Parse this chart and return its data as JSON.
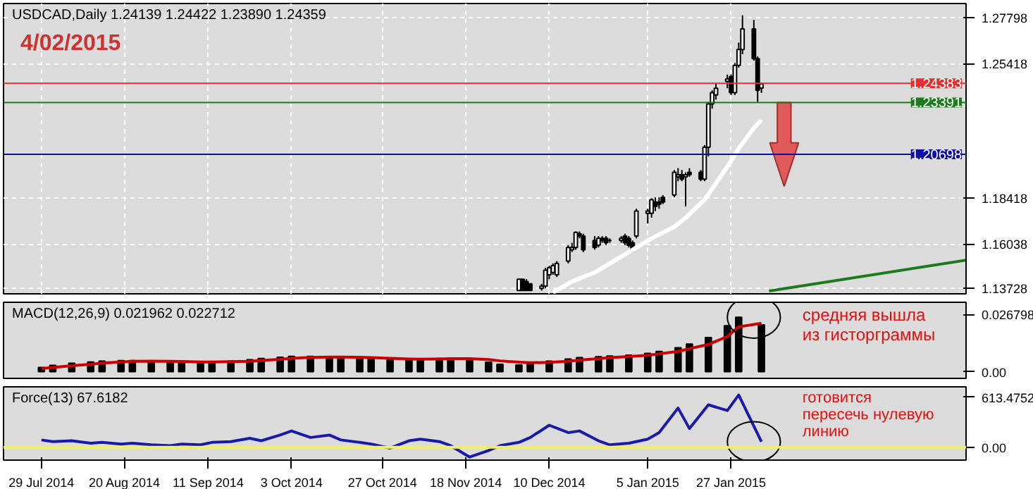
{
  "chart_data": [
    {
      "type": "candlestick",
      "title": "USDCAD,Daily 1.24139 1.24422 1.23890 1.24359",
      "annotations": [
        "4/02/2015"
      ],
      "x": [
        "2014-12-02",
        "2014-12-03",
        "2014-12-04",
        "2014-12-05",
        "2014-12-08",
        "2014-12-09",
        "2014-12-10",
        "2014-12-11",
        "2014-12-12",
        "2014-12-15",
        "2014-12-16",
        "2014-12-17",
        "2014-12-18",
        "2014-12-19",
        "2014-12-22",
        "2014-12-23",
        "2014-12-24",
        "2014-12-25",
        "2014-12-26",
        "2014-12-29",
        "2014-12-30",
        "2014-12-31",
        "2015-01-01",
        "2015-01-02",
        "2015-01-05",
        "2015-01-06",
        "2015-01-07",
        "2015-01-08",
        "2015-01-09",
        "2015-01-12",
        "2015-01-13",
        "2015-01-14",
        "2015-01-15",
        "2015-01-16",
        "2015-01-19",
        "2015-01-20",
        "2015-01-21",
        "2015-01-22",
        "2015-01-23",
        "2015-01-26",
        "2015-01-27",
        "2015-01-28",
        "2015-01-29",
        "2015-01-30",
        "2015-02-02",
        "2015-02-03",
        "2015-02-04"
      ],
      "ohlc": [
        [
          1.1362,
          1.1421,
          1.136,
          1.1421
        ],
        [
          1.1421,
          1.1421,
          1.136,
          1.1362
        ],
        [
          1.1409,
          1.1421,
          1.136,
          1.1362
        ],
        [
          1.1397,
          1.14,
          1.136,
          1.1362
        ],
        [
          1.1373,
          1.1397,
          1.1362,
          1.1385
        ],
        [
          1.1385,
          1.148,
          1.1373,
          1.1468
        ],
        [
          1.1444,
          1.1491,
          1.1421,
          1.148
        ],
        [
          1.1456,
          1.1503,
          1.1444,
          1.1491
        ],
        [
          1.1444,
          1.1515,
          1.1432,
          1.1503
        ],
        [
          1.1515,
          1.1598,
          1.1503,
          1.1586
        ],
        [
          1.1574,
          1.161,
          1.1562,
          1.1586
        ],
        [
          1.1586,
          1.1669,
          1.1574,
          1.1664
        ],
        [
          1.1657,
          1.1669,
          1.1633,
          1.1645
        ],
        [
          1.1645,
          1.1657,
          1.1562,
          1.1574
        ],
        [
          1.1622,
          1.1645,
          1.1574,
          1.1586
        ],
        [
          1.1598,
          1.1645,
          1.1586,
          1.1633
        ],
        [
          1.1633,
          1.1645,
          1.161,
          1.1622
        ],
        [
          1.1633,
          1.1645,
          1.1598,
          1.161
        ],
        [
          1.1622,
          1.1633,
          1.161,
          1.1622
        ],
        [
          1.1622,
          1.1645,
          1.161,
          1.1633
        ],
        [
          1.1645,
          1.1657,
          1.1598,
          1.161
        ],
        [
          1.1633,
          1.1645,
          1.1586,
          1.1598
        ],
        [
          1.161,
          1.1622,
          1.1562,
          1.1574
        ],
        [
          1.1645,
          1.1787,
          1.1633,
          1.1775
        ],
        [
          1.1763,
          1.1787,
          1.171,
          1.1775
        ],
        [
          1.1763,
          1.1841,
          1.174,
          1.1834
        ],
        [
          1.1822,
          1.1846,
          1.1775,
          1.1799
        ],
        [
          1.1822,
          1.1846,
          1.1787,
          1.1811
        ],
        [
          1.1846,
          1.1858,
          1.1811,
          1.1822
        ],
        [
          1.1858,
          1.1988,
          1.1846,
          1.1976
        ],
        [
          1.1953,
          1.1998,
          1.193,
          1.1964
        ],
        [
          1.1964,
          1.1988,
          1.193,
          1.1941
        ],
        [
          1.1953,
          1.1976,
          1.1799,
          1.1964
        ],
        [
          1.1976,
          1.1998,
          1.1953,
          1.1964
        ],
        [
          1.1976,
          1.1988,
          1.193,
          1.1941
        ],
        [
          1.1941,
          1.2118,
          1.193,
          1.2106
        ],
        [
          1.2106,
          1.2342,
          1.2059,
          1.2331
        ],
        [
          1.2331,
          1.2402,
          1.2307,
          1.239
        ],
        [
          1.2378,
          1.2437,
          1.2354,
          1.2413
        ],
        [
          1.2449,
          1.2484,
          1.2413,
          1.2461
        ],
        [
          1.2473,
          1.2484,
          1.2378,
          1.239
        ],
        [
          1.239,
          1.2544,
          1.2378,
          1.2532
        ],
        [
          1.2532,
          1.265,
          1.252,
          1.2614
        ],
        [
          1.2614,
          1.2792,
          1.259,
          1.2721
        ],
        [
          1.2721,
          1.2768,
          1.2556,
          1.2567
        ],
        [
          1.2567,
          1.2578,
          1.2342,
          1.2402
        ],
        [
          1.24139,
          1.24422,
          1.2389,
          1.24359
        ]
      ],
      "series": [
        {
          "type": "line",
          "color": "#ffffff",
          "x": [
            "2014-12-11",
            "2014-12-16",
            "2014-12-22",
            "2014-12-25",
            "2014-12-31",
            "2015-01-06",
            "2015-01-12",
            "2015-01-15",
            "2015-01-20",
            "2015-01-22",
            "2015-01-27",
            "2015-01-29",
            "2015-02-02",
            "2015-02-04"
          ],
          "values": [
            1.1352,
            1.1409,
            1.1456,
            1.1491,
            1.1562,
            1.1633,
            1.1693,
            1.174,
            1.1834,
            1.189,
            1.2035,
            1.21,
            1.2206,
            1.2248
          ]
        },
        {
          "type": "line",
          "color": "#1e7a1e",
          "x": [
            "2015-02-06",
            "2015-03-30"
          ],
          "values": [
            1.136,
            1.152
          ]
        }
      ],
      "ref_lines": [
        {
          "axis": "y",
          "value": 1.24383,
          "label": "1.24383",
          "color": "#e03030"
        },
        {
          "axis": "y",
          "value": 1.23391,
          "label": "1.23391",
          "color": "#1e7a1e"
        },
        {
          "axis": "y",
          "value": 1.20698,
          "label": "1.20698",
          "color": "#1010a0"
        }
      ],
      "xlim": [
        "2014-07-19",
        "2015-03-30"
      ],
      "ylim": [
        1.1345,
        1.2853
      ],
      "yticks": [
        1.13728,
        1.16038,
        1.18418,
        1.25418,
        1.27798
      ],
      "xticks": [
        {
          "value": "2014-07-29",
          "label": null
        },
        {
          "value": "2014-08-20",
          "label": null
        },
        {
          "value": "2014-09-11",
          "label": null
        },
        {
          "value": "2014-10-03",
          "label": null
        },
        {
          "value": "2014-10-27",
          "label": null
        },
        {
          "value": "2014-11-18",
          "label": null
        },
        {
          "value": "2014-12-10",
          "label": null
        },
        {
          "value": "2015-01-05",
          "label": null
        },
        {
          "value": "2015-01-27",
          "label": null
        }
      ],
      "grid": true,
      "tick_labels": "y"
    },
    {
      "type": "bar",
      "title": "MACD(12,26,9) 0.021962 0.022712",
      "annotations": [
        "средняя вышла\nиз гисторграммы"
      ],
      "x": [
        "2014-07-29",
        "2014-08-01",
        "2014-08-06",
        "2014-08-11",
        "2014-08-14",
        "2014-08-19",
        "2014-08-22",
        "2014-08-27",
        "2014-09-01",
        "2014-09-04",
        "2014-09-09",
        "2014-09-12",
        "2014-09-17",
        "2014-09-22",
        "2014-09-25",
        "2014-09-30",
        "2014-10-03",
        "2014-10-08",
        "2014-10-13",
        "2014-10-16",
        "2014-10-21",
        "2014-10-24",
        "2014-10-29",
        "2014-11-03",
        "2014-11-06",
        "2014-11-11",
        "2014-11-14",
        "2014-11-19",
        "2014-11-24",
        "2014-11-27",
        "2014-12-02",
        "2014-12-05",
        "2014-12-10",
        "2014-12-15",
        "2014-12-18",
        "2014-12-23",
        "2014-12-26",
        "2014-12-31",
        "2015-01-05",
        "2015-01-08",
        "2015-01-13",
        "2015-01-16",
        "2015-01-21",
        "2015-01-26",
        "2015-01-29",
        "2015-02-04"
      ],
      "series": [
        {
          "type": "bar",
          "color": "#000000",
          "values": [
            0.002,
            0.003,
            0.004,
            0.0046,
            0.005,
            0.0052,
            0.0052,
            0.005,
            0.0047,
            0.0045,
            0.0044,
            0.0046,
            0.005,
            0.0056,
            0.0062,
            0.0068,
            0.0072,
            0.0072,
            0.007,
            0.0068,
            0.0064,
            0.006,
            0.0056,
            0.0055,
            0.0058,
            0.0062,
            0.0064,
            0.0058,
            0.0045,
            0.0035,
            0.0032,
            0.0038,
            0.005,
            0.006,
            0.0066,
            0.007,
            0.0074,
            0.0078,
            0.0086,
            0.0095,
            0.0112,
            0.013,
            0.016,
            0.0215,
            0.0255,
            0.021962
          ]
        },
        {
          "type": "line",
          "color": "#cc0000",
          "values": [
            0.0015,
            0.002,
            0.0028,
            0.0035,
            0.0041,
            0.0046,
            0.0049,
            0.005,
            0.0049,
            0.0048,
            0.0046,
            0.0046,
            0.0047,
            0.0049,
            0.0053,
            0.0058,
            0.0063,
            0.0067,
            0.0069,
            0.0069,
            0.0068,
            0.0066,
            0.0063,
            0.006,
            0.0059,
            0.006,
            0.0061,
            0.0061,
            0.0057,
            0.0051,
            0.0045,
            0.0042,
            0.0044,
            0.0049,
            0.0055,
            0.0061,
            0.0066,
            0.0071,
            0.0077,
            0.0084,
            0.0095,
            0.0108,
            0.0128,
            0.0165,
            0.021,
            0.022712
          ]
        }
      ],
      "xlim": [
        "2014-07-19",
        "2015-03-30"
      ],
      "ylim": [
        -0.0031,
        0.0325
      ],
      "yticks": [
        0.026798,
        {
          "value": 0,
          "label": "0.00"
        }
      ],
      "tick_labels": "y"
    },
    {
      "type": "line",
      "title": "Force(13) 67.6182",
      "annotations": [
        "готовится\nпересечь нулевую\nлинию"
      ],
      "x": [
        "2014-07-29",
        "2014-08-01",
        "2014-08-06",
        "2014-08-11",
        "2014-08-14",
        "2014-08-19",
        "2014-08-22",
        "2014-08-27",
        "2014-09-01",
        "2014-09-04",
        "2014-09-09",
        "2014-09-12",
        "2014-09-17",
        "2014-09-22",
        "2014-09-25",
        "2014-09-30",
        "2014-10-03",
        "2014-10-08",
        "2014-10-13",
        "2014-10-16",
        "2014-10-21",
        "2014-10-24",
        "2014-10-29",
        "2014-11-03",
        "2014-11-06",
        "2014-11-11",
        "2014-11-14",
        "2014-11-19",
        "2014-11-24",
        "2014-11-27",
        "2014-12-02",
        "2014-12-05",
        "2014-12-10",
        "2014-12-15",
        "2014-12-18",
        "2014-12-23",
        "2014-12-26",
        "2014-12-31",
        "2015-01-05",
        "2015-01-08",
        "2015-01-13",
        "2015-01-16",
        "2015-01-21",
        "2015-01-26",
        "2015-01-29",
        "2015-02-04"
      ],
      "series": [
        {
          "color": "#1a1aa8",
          "values": [
            90,
            70,
            80,
            50,
            60,
            40,
            50,
            30,
            20,
            40,
            30,
            60,
            70,
            110,
            80,
            150,
            200,
            120,
            150,
            90,
            60,
            40,
            -10,
            80,
            100,
            70,
            20,
            -120,
            -40,
            20,
            60,
            120,
            270,
            180,
            200,
            80,
            30,
            50,
            100,
            180,
            480,
            230,
            520,
            450,
            640,
            67.6182
          ]
        }
      ],
      "ref_lines": [
        {
          "axis": "y",
          "value": 0,
          "color": "#f0f060"
        }
      ],
      "xlim": [
        "2014-07-19",
        "2015-03-30"
      ],
      "ylim": [
        -157,
        740
      ],
      "yticks": [
        613.4752,
        {
          "value": 0,
          "label": "0.00"
        }
      ],
      "xticks": [
        {
          "value": "2014-07-29",
          "label": "29 Jul 2014"
        },
        {
          "value": "2014-08-20",
          "label": "20 Aug 2014"
        },
        {
          "value": "2014-09-11",
          "label": "11 Sep 2014"
        },
        {
          "value": "2014-10-03",
          "label": "3 Oct 2014"
        },
        {
          "value": "2014-10-27",
          "label": "27 Oct 2014"
        },
        {
          "value": "2014-11-18",
          "label": "18 Nov 2014"
        },
        {
          "value": "2014-12-10",
          "label": "10 Dec 2014"
        },
        {
          "value": "2015-01-05",
          "label": "5 Jan 2015"
        },
        {
          "value": "2015-01-27",
          "label": "27 Jan 2015"
        }
      ]
    }
  ]
}
